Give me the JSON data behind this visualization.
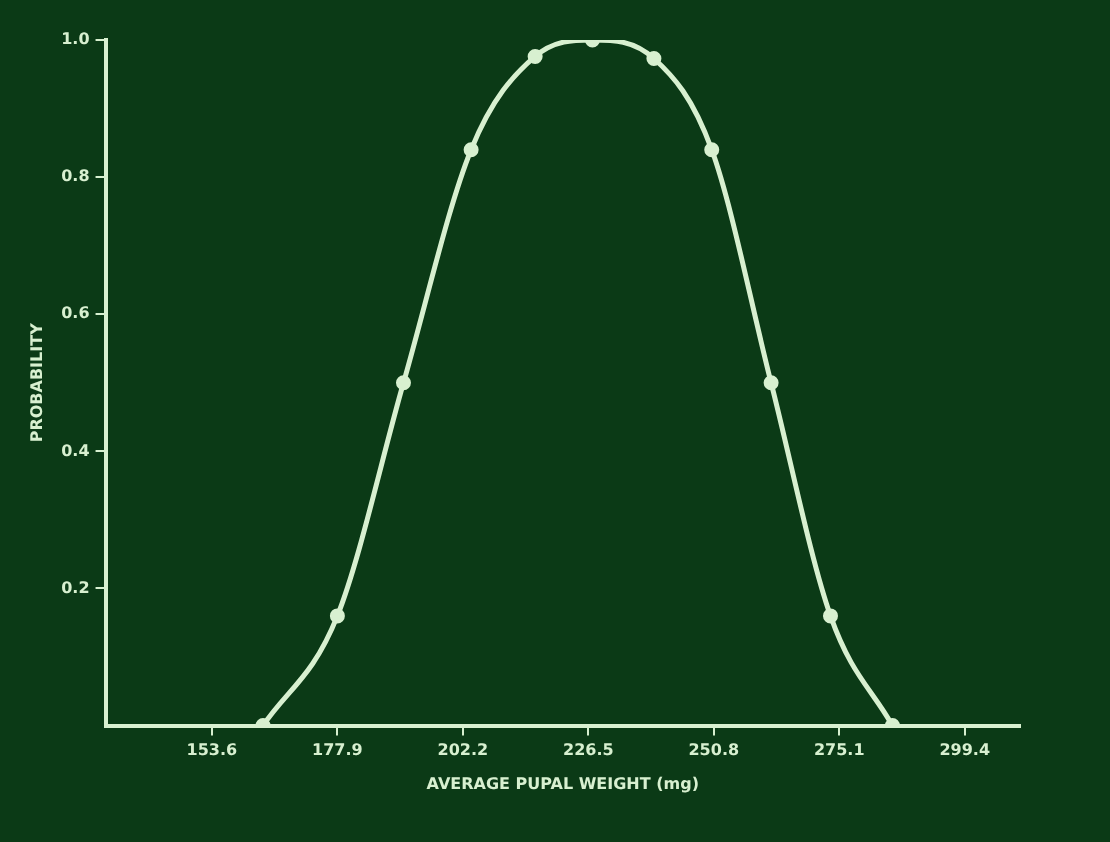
{
  "chart_data": {
    "type": "line",
    "xlabel": "AVERAGE PUPAL WEIGHT (mg)",
    "ylabel": "PROBABILITY",
    "x": [
      163.5,
      177.9,
      190.7,
      203.8,
      216.2,
      227.3,
      239.2,
      250.4,
      261.9,
      273.4,
      285.4
    ],
    "series": [
      {
        "color": "#d8f0d0",
        "values": [
          0,
          0.16,
          0.5,
          0.84,
          0.976,
          1.0,
          0.973,
          0.84,
          0.5,
          0.16,
          0
        ]
      }
    ],
    "xlim": [
      133.0,
      310.1
    ],
    "xticks": [
      153.6,
      177.9,
      202.2,
      226.5,
      250.8,
      275.1,
      299.4
    ],
    "ylim": [
      0,
      1.0
    ],
    "yticks": [
      0.2,
      0.4,
      0.6,
      0.8,
      {
        "value": 1.0,
        "label": "1.0"
      }
    ],
    "grid": false,
    "legend": false,
    "marker": "circle",
    "line_style": "solid"
  }
}
